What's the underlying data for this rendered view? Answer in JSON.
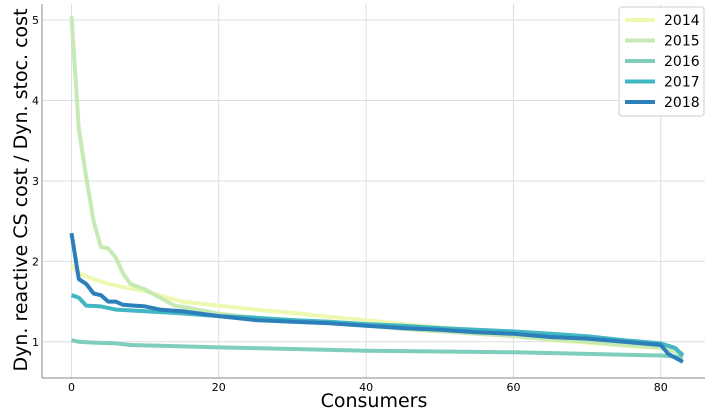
{
  "chart_data": {
    "type": "line",
    "title": "",
    "xlabel": "Consumers",
    "ylabel": "Dyn. reactive CS cost / Dyn. stoc. cost",
    "xlim": [
      -4,
      86
    ],
    "ylim": [
      0.55,
      5.2
    ],
    "x_ticks": [
      0,
      20,
      40,
      60,
      80
    ],
    "y_ticks": [
      1,
      2,
      3,
      4,
      5
    ],
    "grid": true,
    "legend_position": "top-right",
    "series": [
      {
        "name": "2014",
        "color": "#edf8b1",
        "points": [
          [
            0,
            1.95
          ],
          [
            1,
            1.85
          ],
          [
            3,
            1.78
          ],
          [
            5,
            1.72
          ],
          [
            7,
            1.68
          ],
          [
            10,
            1.63
          ],
          [
            13,
            1.55
          ],
          [
            15,
            1.5
          ],
          [
            20,
            1.45
          ],
          [
            25,
            1.4
          ],
          [
            30,
            1.36
          ],
          [
            35,
            1.31
          ],
          [
            40,
            1.27
          ],
          [
            45,
            1.22
          ],
          [
            50,
            1.18
          ],
          [
            55,
            1.14
          ],
          [
            60,
            1.08
          ],
          [
            65,
            1.02
          ],
          [
            70,
            0.99
          ],
          [
            75,
            0.95
          ],
          [
            80,
            0.92
          ],
          [
            83,
            0.86
          ]
        ]
      },
      {
        "name": "2015",
        "color": "#c7e9b4",
        "points": [
          [
            0,
            5.05
          ],
          [
            1,
            3.65
          ],
          [
            2,
            3.05
          ],
          [
            3,
            2.5
          ],
          [
            4,
            2.18
          ],
          [
            5,
            2.16
          ],
          [
            6,
            2.05
          ],
          [
            7,
            1.85
          ],
          [
            8,
            1.72
          ],
          [
            10,
            1.65
          ],
          [
            12,
            1.55
          ],
          [
            14,
            1.45
          ],
          [
            16,
            1.42
          ],
          [
            20,
            1.35
          ],
          [
            25,
            1.3
          ],
          [
            30,
            1.27
          ],
          [
            35,
            1.24
          ],
          [
            40,
            1.2
          ],
          [
            45,
            1.16
          ],
          [
            50,
            1.13
          ],
          [
            55,
            1.1
          ],
          [
            60,
            1.07
          ],
          [
            65,
            1.03
          ],
          [
            70,
            1.0
          ],
          [
            75,
            0.96
          ],
          [
            80,
            0.93
          ],
          [
            83,
            0.85
          ]
        ]
      },
      {
        "name": "2016",
        "color": "#7fcdbb",
        "points": [
          [
            0,
            1.02
          ],
          [
            1,
            1.0
          ],
          [
            3,
            0.99
          ],
          [
            6,
            0.98
          ],
          [
            8,
            0.96
          ],
          [
            12,
            0.95
          ],
          [
            20,
            0.93
          ],
          [
            30,
            0.91
          ],
          [
            40,
            0.89
          ],
          [
            50,
            0.88
          ],
          [
            60,
            0.87
          ],
          [
            70,
            0.85
          ],
          [
            75,
            0.84
          ],
          [
            80,
            0.83
          ],
          [
            83,
            0.81
          ]
        ]
      },
      {
        "name": "2017",
        "color": "#41b6c4",
        "points": [
          [
            0,
            1.58
          ],
          [
            1,
            1.55
          ],
          [
            2,
            1.45
          ],
          [
            4,
            1.44
          ],
          [
            6,
            1.4
          ],
          [
            10,
            1.38
          ],
          [
            14,
            1.36
          ],
          [
            20,
            1.32
          ],
          [
            25,
            1.3
          ],
          [
            30,
            1.27
          ],
          [
            35,
            1.25
          ],
          [
            40,
            1.22
          ],
          [
            45,
            1.2
          ],
          [
            50,
            1.17
          ],
          [
            55,
            1.15
          ],
          [
            60,
            1.13
          ],
          [
            65,
            1.1
          ],
          [
            70,
            1.07
          ],
          [
            75,
            1.02
          ],
          [
            80,
            0.98
          ],
          [
            82,
            0.92
          ],
          [
            83,
            0.83
          ]
        ]
      },
      {
        "name": "2018",
        "color": "#2c7fb8",
        "points": [
          [
            0,
            2.35
          ],
          [
            1,
            1.78
          ],
          [
            2,
            1.72
          ],
          [
            3,
            1.6
          ],
          [
            4,
            1.58
          ],
          [
            5,
            1.5
          ],
          [
            6,
            1.5
          ],
          [
            7,
            1.46
          ],
          [
            10,
            1.44
          ],
          [
            12,
            1.4
          ],
          [
            15,
            1.38
          ],
          [
            20,
            1.32
          ],
          [
            25,
            1.27
          ],
          [
            30,
            1.25
          ],
          [
            35,
            1.23
          ],
          [
            40,
            1.2
          ],
          [
            45,
            1.17
          ],
          [
            50,
            1.15
          ],
          [
            55,
            1.12
          ],
          [
            60,
            1.1
          ],
          [
            65,
            1.06
          ],
          [
            70,
            1.04
          ],
          [
            75,
            1.0
          ],
          [
            80,
            0.96
          ],
          [
            81,
            0.85
          ],
          [
            83,
            0.75
          ]
        ]
      }
    ]
  }
}
